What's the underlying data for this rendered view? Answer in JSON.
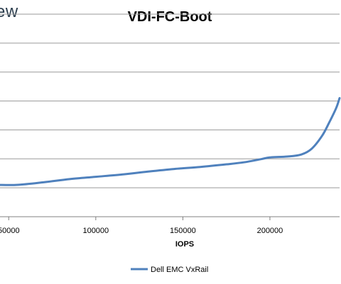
{
  "header": {
    "logo_fragment": "ew"
  },
  "chart_data": {
    "type": "line",
    "title": "VDI-FC-Boot",
    "xlabel": "IOPS",
    "ylabel": "",
    "xlim": [
      45000,
      240000
    ],
    "ylim": [
      0,
      7
    ],
    "x_ticks": [
      50000,
      100000,
      150000,
      200000
    ],
    "x_tick_labels": [
      "50000",
      "100000",
      "150000",
      "200000"
    ],
    "y_gridlines": [
      0,
      1,
      2,
      3,
      4,
      5,
      6,
      7
    ],
    "grid": true,
    "legend": "bottom",
    "colors": {
      "series": "#4f81bd",
      "grid": "#9a9a9a",
      "axis": "#808080"
    },
    "series": [
      {
        "name": "Dell EMC VxRail",
        "x": [
          44000,
          55000,
          70000,
          85000,
          100000,
          115000,
          130000,
          145000,
          160000,
          175000,
          185000,
          195000,
          200000,
          210000,
          218000,
          224000,
          230000,
          234000,
          238000,
          240000
        ],
        "y": [
          1.1,
          1.1,
          1.19,
          1.3,
          1.38,
          1.46,
          1.56,
          1.65,
          1.72,
          1.81,
          1.88,
          1.99,
          2.05,
          2.08,
          2.15,
          2.35,
          2.8,
          3.25,
          3.75,
          4.1
        ]
      }
    ]
  }
}
